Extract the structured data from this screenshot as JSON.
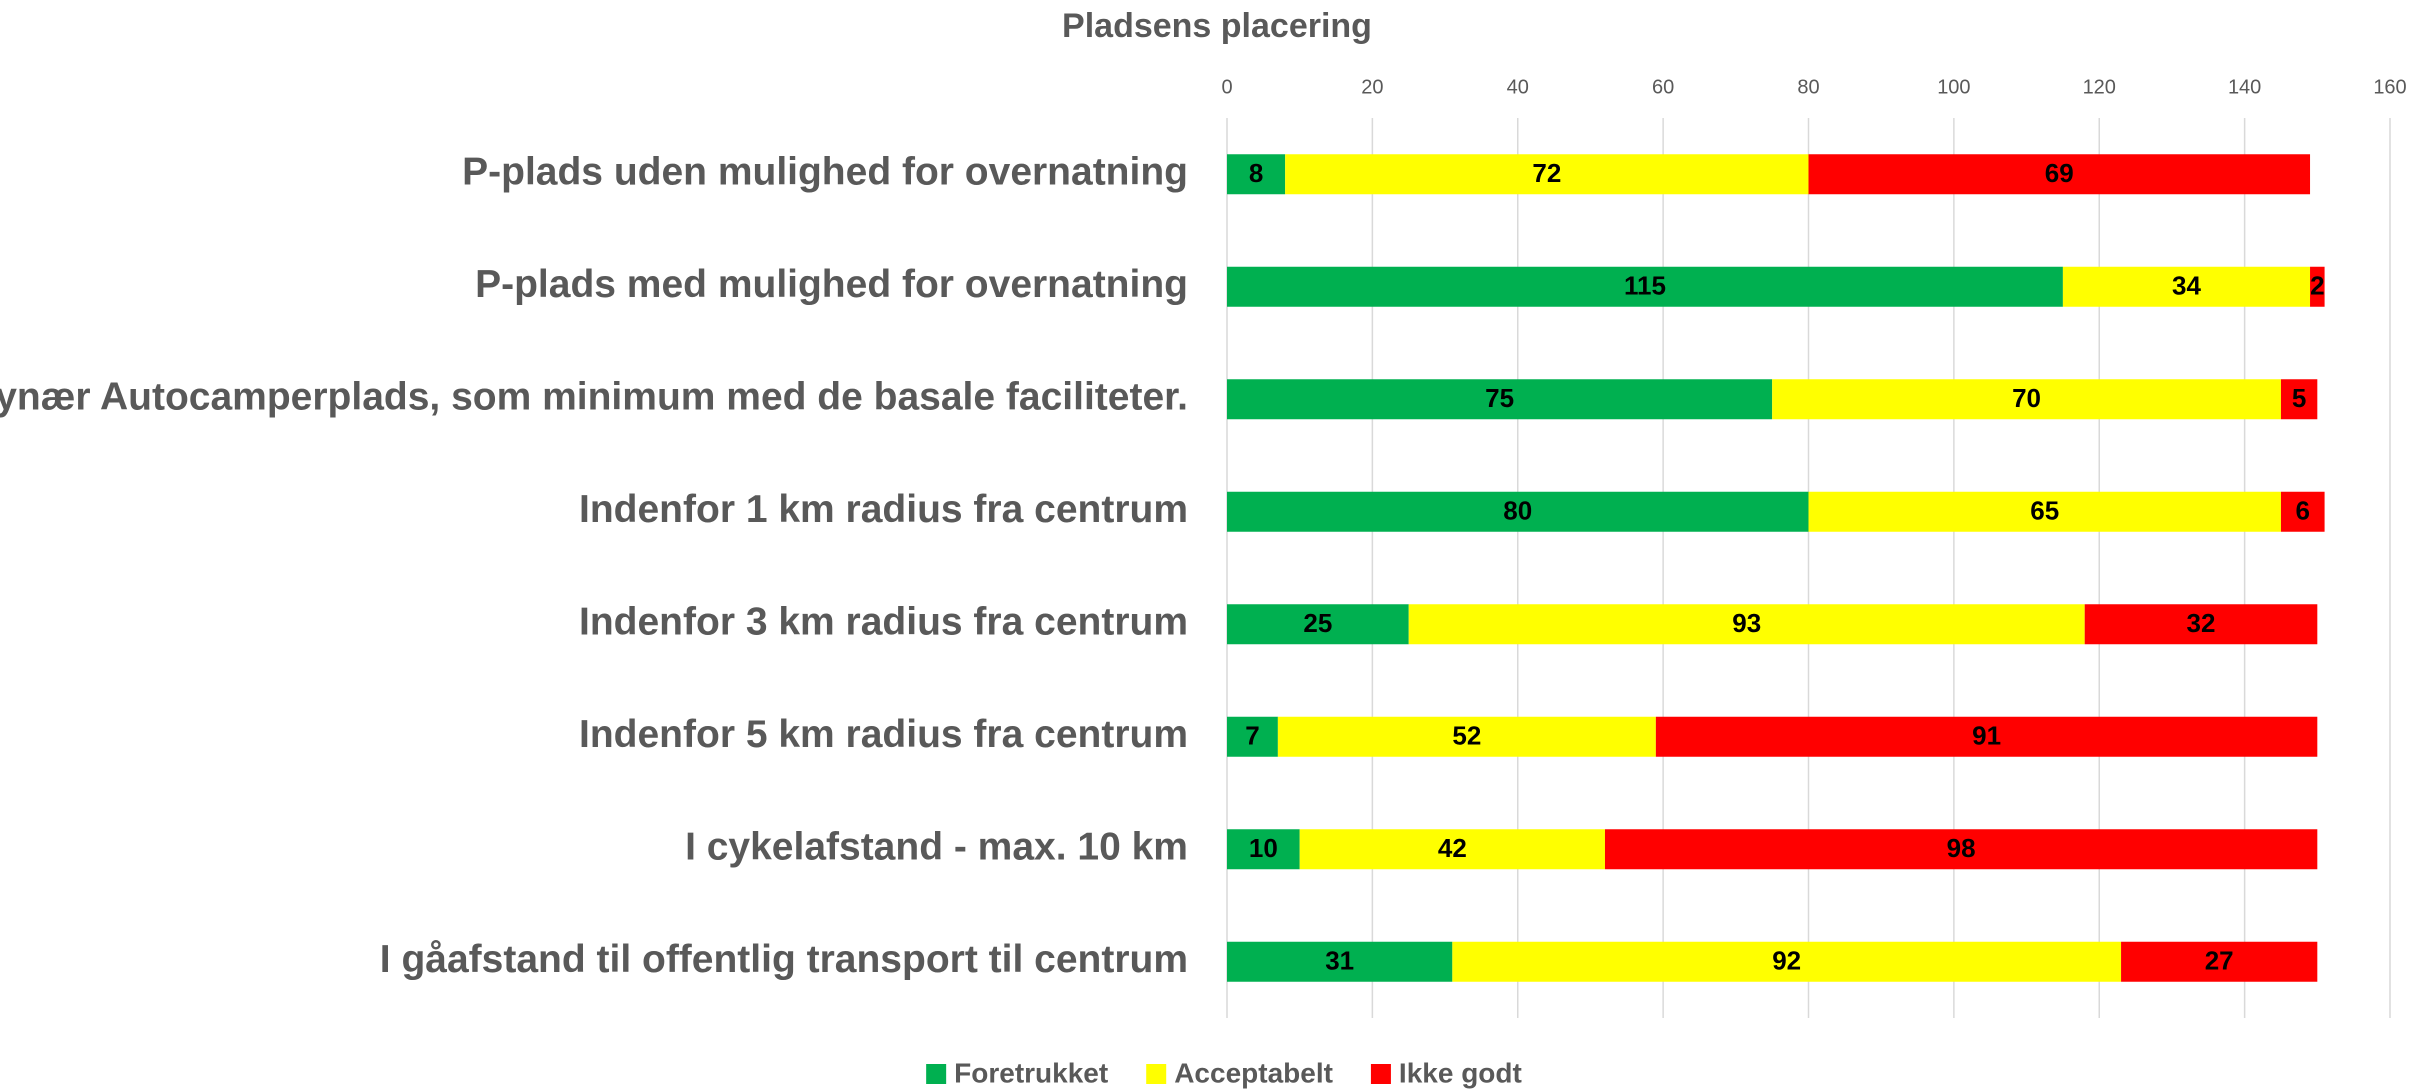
{
  "chart_data": {
    "type": "stacked_barh",
    "title": "Pladsens placering",
    "categories": [
      "P-plads uden mulighed for overnatning",
      "P-plads med mulighed for overnatning",
      "Bynær Autocamperplads, som minimum med de basale faciliteter.",
      "Indenfor 1 km radius fra centrum",
      "Indenfor 3 km radius fra centrum",
      "Indenfor 5 km radius fra centrum",
      "I cykelafstand - max. 10 km",
      "I gåafstand til offentlig transport til centrum"
    ],
    "series": [
      {
        "name": "Foretrukket",
        "color": "#00b050",
        "values": [
          8,
          115,
          75,
          80,
          25,
          7,
          10,
          31
        ]
      },
      {
        "name": "Acceptabelt",
        "color": "#ffff00",
        "values": [
          72,
          34,
          70,
          65,
          93,
          52,
          42,
          92
        ]
      },
      {
        "name": "Ikke godt",
        "color": "#ff0000",
        "values": [
          69,
          2,
          5,
          6,
          32,
          91,
          98,
          27
        ]
      }
    ],
    "xlim": [
      0,
      160
    ],
    "xticks": [
      0,
      20,
      40,
      60,
      80,
      100,
      120,
      140,
      160
    ],
    "grid": true,
    "legend": "bottom"
  }
}
